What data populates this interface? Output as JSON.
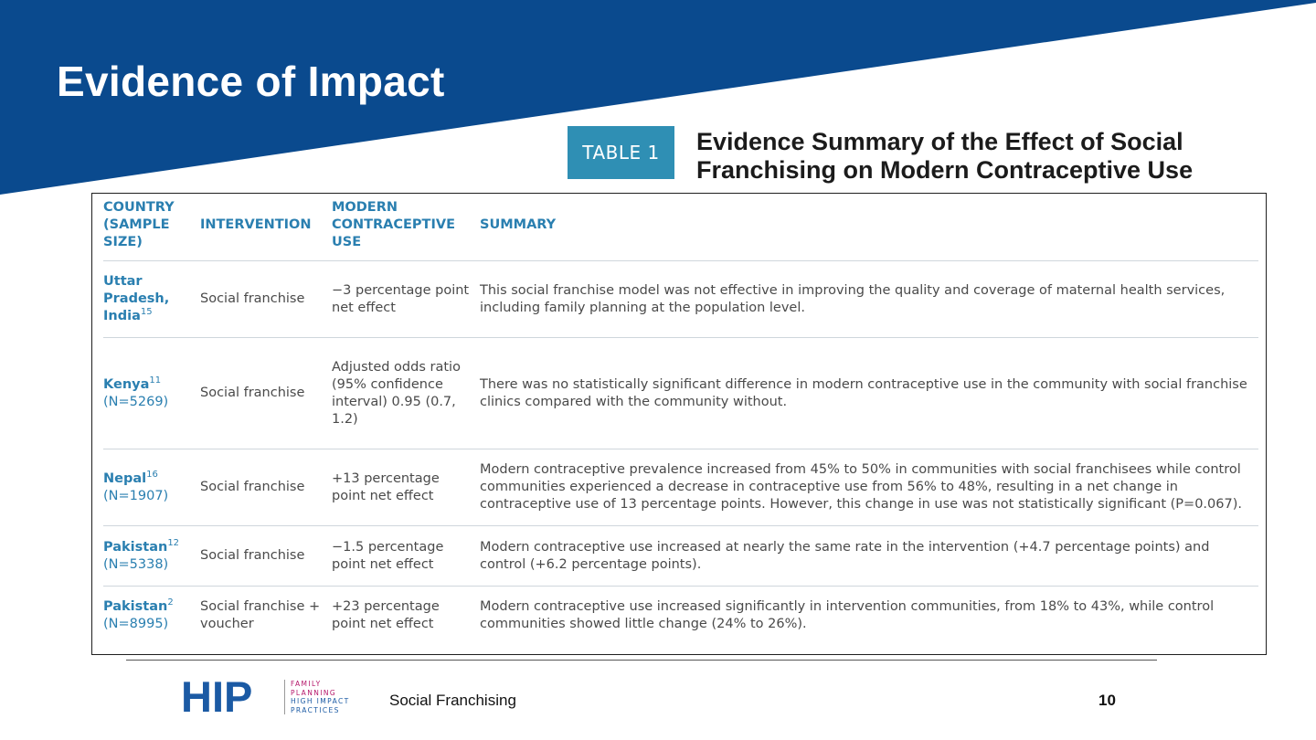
{
  "slide": {
    "title": "Evidence of Impact",
    "colors": {
      "banner": "#0a4a8e",
      "badge": "#2f8fb4",
      "header_text": "#2a7fb0"
    }
  },
  "table": {
    "badge": "TABLE 1",
    "title_line1": "Evidence Summary of the Effect of Social",
    "title_line2": "Franchising on Modern Contraceptive Use",
    "headers": {
      "country": "COUNTRY (SAMPLE SIZE)",
      "intervention": "INTERVENTION",
      "modern_use": "MODERN CONTRACEPTIVE USE",
      "summary": "SUMMARY"
    },
    "rows": [
      {
        "country": "Uttar Pradesh, India",
        "ref": "15",
        "sample": "",
        "intervention": "Social franchise",
        "effect": "−3 percentage point net effect",
        "summary": "This social franchise model was not effective in improving the quality and coverage of maternal health services, including family planning at the population level."
      },
      {
        "country": "Kenya",
        "ref": "11",
        "sample": "(N=5269)",
        "intervention": "Social franchise",
        "effect": "Adjusted odds ratio (95% confidence interval) 0.95 (0.7, 1.2)",
        "summary": "There was no statistically significant difference in modern contraceptive use in the community with social franchise clinics compared with the community without."
      },
      {
        "country": "Nepal",
        "ref": "16",
        "sample": "(N=1907)",
        "intervention": "Social franchise",
        "effect": "+13 percentage point net effect",
        "summary": "Modern contraceptive prevalence increased from 45% to 50% in communities with social franchisees while control communities experienced a decrease in contraceptive use from 56% to 48%, resulting in a net change in contraceptive use of 13 percentage points. However, this change in use was not statistically significant (P=0.067)."
      },
      {
        "country": "Pakistan",
        "ref": "12",
        "sample": "(N=5338)",
        "intervention": "Social franchise",
        "effect": "−1.5 percentage point net effect",
        "summary": "Modern contraceptive use increased at nearly the same rate in the intervention (+4.7 percentage points) and control (+6.2 percentage points)."
      },
      {
        "country": "Pakistan",
        "ref": "2",
        "sample": "(N=8995)",
        "intervention": "Social franchise + voucher",
        "effect": "+23 percentage point net effect",
        "summary": "Modern contraceptive use increased significantly in intervention communities, from 18% to 43%, while control communities showed little change (24% to 26%)."
      }
    ]
  },
  "footer": {
    "logo_mark": "HIP",
    "logo_line1": "FAMILY",
    "logo_line2": "PLANNING",
    "logo_line3": "HIGH IMPACT",
    "logo_line4": "PRACTICES",
    "center_text": "Social Franchising",
    "page_number": "10"
  }
}
